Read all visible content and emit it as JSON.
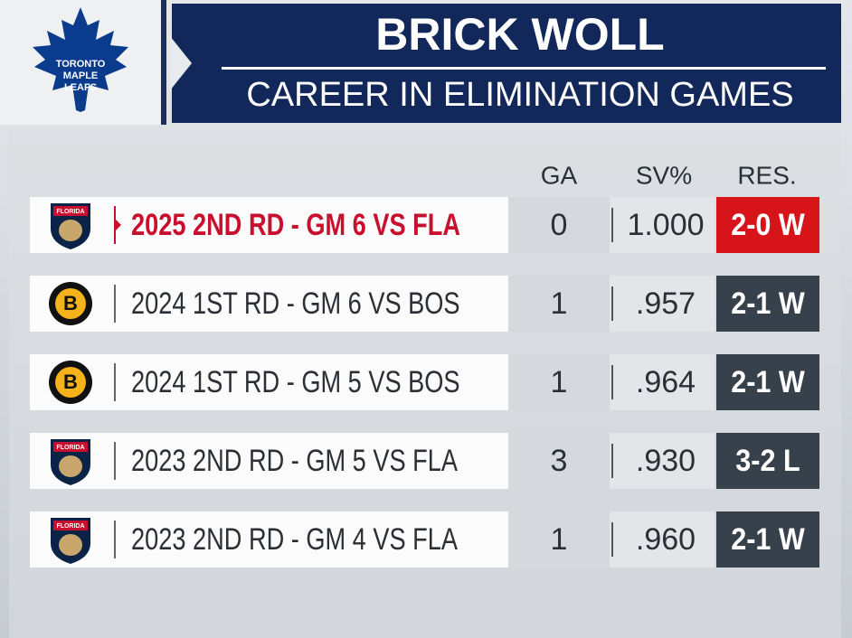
{
  "header": {
    "title": "BRICK WOLL",
    "subtitle": "CAREER IN ELIMINATION GAMES",
    "logo": [
      "TORONTO",
      "MAPLE",
      "LEAFS"
    ]
  },
  "table": {
    "columns": [
      "GA",
      "SV%",
      "RES."
    ],
    "rows": [
      {
        "team_logo": "FLORIDA",
        "game": "2025 2ND RD - GM 6 VS FLA",
        "ga": "0",
        "sv": "1.000",
        "result": "2-0 W"
      },
      {
        "team_logo": "B",
        "game": "2024 1ST RD - GM 6 VS BOS",
        "ga": "1",
        "sv": ".957",
        "result": "2-1 W"
      },
      {
        "team_logo": "B",
        "game": "2024 1ST RD - GM 5 VS BOS",
        "ga": "1",
        "sv": ".964",
        "result": "2-1 W"
      },
      {
        "team_logo": "FLORIDA",
        "game": "2023 2ND RD - GM 5 VS FLA",
        "ga": "3",
        "sv": ".930",
        "result": "3-2 L"
      },
      {
        "team_logo": "FLORIDA",
        "game": "2023 2ND RD - GM 4 VS FLA",
        "ga": "1",
        "sv": ".960",
        "result": "2-1 W"
      }
    ]
  }
}
